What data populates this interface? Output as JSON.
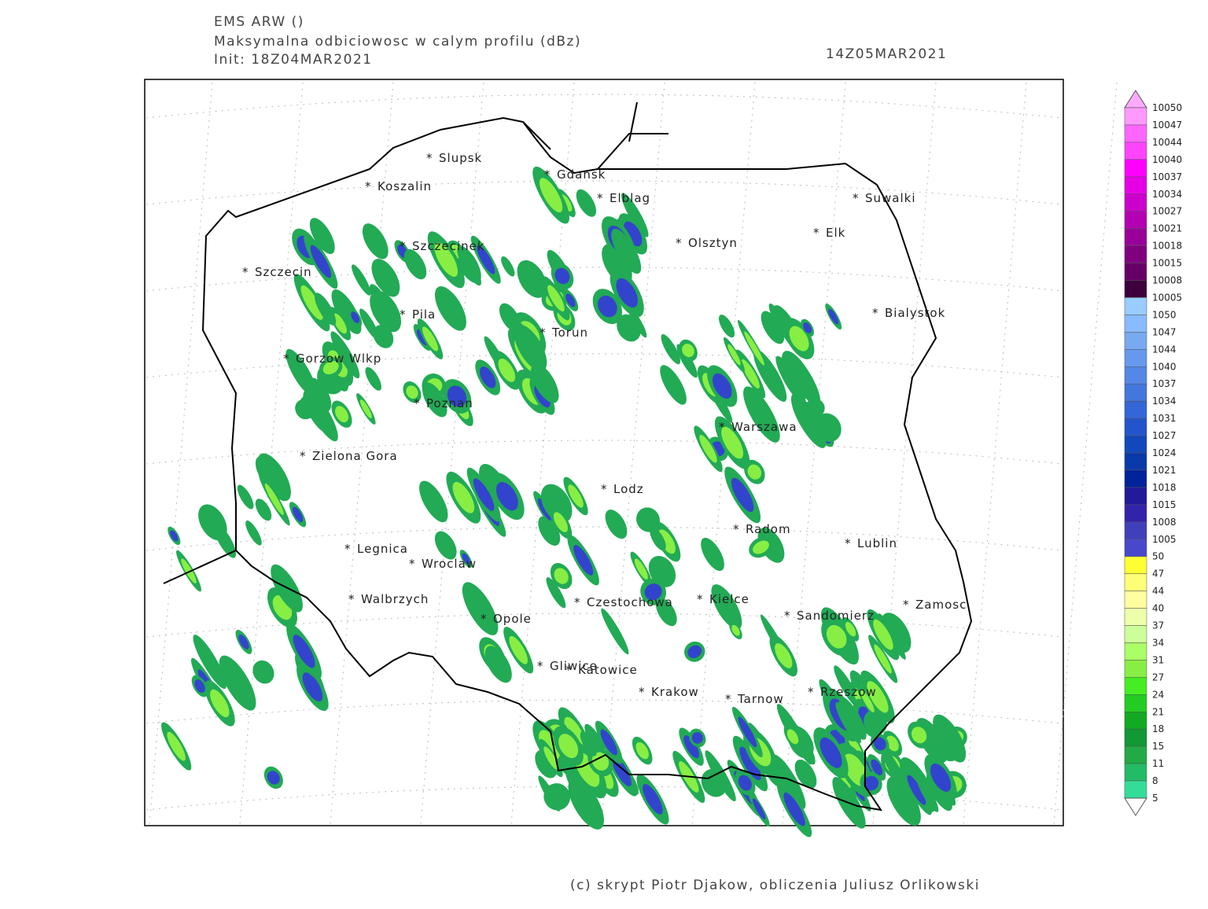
{
  "header": {
    "model": "EMS ARW ()",
    "field": "Maksymalna odbiciowosc w calym profilu (dBz)",
    "init": "Init: 18Z04MAR2021",
    "valid": "14Z05MAR2021"
  },
  "cities": [
    "Slupsk",
    "Koszalin",
    "Gdansk",
    "Elblag",
    "Suwalki",
    "Elk",
    "Olsztyn",
    "Szczecinek",
    "Szczecin",
    "Bialystok",
    "Pila",
    "Torun",
    "Gorzow Wlkp",
    "Poznan",
    "Warszawa",
    "Zielona Gora",
    "Lodz",
    "Radom",
    "Lublin",
    "Legnica",
    "Wroclaw",
    "Walbrzych",
    "Czestochowa",
    "Kielce",
    "Sandomierz",
    "Zamosc",
    "Opole",
    "Gliwice",
    "Katowice",
    "Krakow",
    "Tarnow",
    "Rzeszow"
  ],
  "legend": {
    "levels": [
      10050,
      10047,
      10044,
      10040,
      10037,
      10034,
      10027,
      10021,
      10018,
      10015,
      10008,
      10005,
      1050,
      1047,
      1044,
      1040,
      1037,
      1034,
      1031,
      1027,
      1024,
      1021,
      1018,
      1015,
      1008,
      1005,
      50,
      47,
      44,
      40,
      37,
      34,
      31,
      27,
      24,
      21,
      18,
      15,
      11,
      8,
      5
    ],
    "colors": [
      "#ff99ff",
      "#ff66ff",
      "#ff44ff",
      "#ff00ff",
      "#e600e6",
      "#cc00cc",
      "#b300b3",
      "#990099",
      "#800080",
      "#660066",
      "#3d003d",
      "#99ccff",
      "#88bbff",
      "#77aaf0",
      "#6699ee",
      "#5588e6",
      "#4477dd",
      "#3366d6",
      "#2255cc",
      "#1148bb",
      "#0a3aaa",
      "#00229a",
      "#221a99",
      "#3322aa",
      "#4040bb",
      "#4848cc",
      "#ffff33",
      "#ffff77",
      "#ffffa0",
      "#eeffaa",
      "#ccff99",
      "#aaff66",
      "#88ee44",
      "#44ee22",
      "#22cc22",
      "#11aa22",
      "#119933",
      "#22aa44",
      "#22bb66",
      "#33dd99"
    ]
  },
  "footer": "(c) skrypt Piotr Djakow, obliczenia Juliusz Orlikowski"
}
